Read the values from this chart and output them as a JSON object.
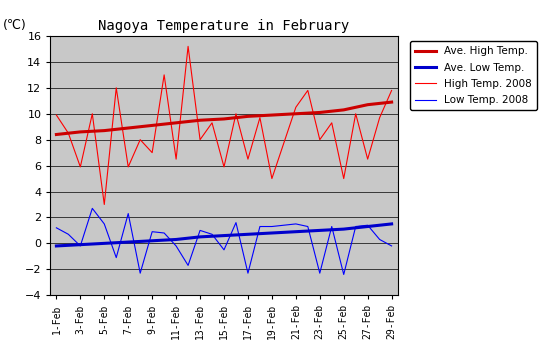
{
  "title": "Nagoya Temperature in February",
  "ylabel": "(℃)",
  "ylim": [
    -4,
    16
  ],
  "yticks": [
    -4,
    -2,
    0,
    2,
    4,
    6,
    8,
    10,
    12,
    14,
    16
  ],
  "x_labels": [
    "1-Feb",
    "3-Feb",
    "5-Feb",
    "7-Feb",
    "9-Feb",
    "11-Feb",
    "13-Feb",
    "15-Feb",
    "17-Feb",
    "19-Feb",
    "21-Feb",
    "23-Feb",
    "25-Feb",
    "27-Feb",
    "29-Feb"
  ],
  "x_days": [
    1,
    3,
    5,
    7,
    9,
    11,
    13,
    15,
    17,
    19,
    21,
    23,
    25,
    27,
    29
  ],
  "ave_high_days": [
    1,
    3,
    5,
    7,
    9,
    11,
    13,
    15,
    17,
    19,
    21,
    23,
    25,
    27,
    29
  ],
  "ave_high": [
    8.4,
    8.6,
    8.7,
    8.9,
    9.1,
    9.3,
    9.5,
    9.6,
    9.8,
    9.9,
    10.0,
    10.1,
    10.3,
    10.7,
    10.9
  ],
  "ave_low_days": [
    1,
    3,
    5,
    7,
    9,
    11,
    13,
    15,
    17,
    19,
    21,
    23,
    25,
    27,
    29
  ],
  "ave_low": [
    -0.2,
    -0.1,
    0.0,
    0.1,
    0.2,
    0.3,
    0.5,
    0.6,
    0.7,
    0.8,
    0.9,
    1.0,
    1.1,
    1.3,
    1.5
  ],
  "high_2008_days": [
    1,
    2,
    3,
    4,
    5,
    6,
    7,
    8,
    9,
    10,
    11,
    12,
    13,
    14,
    15,
    16,
    17,
    18,
    19,
    21,
    22,
    23,
    24,
    25,
    26,
    27,
    28,
    29
  ],
  "high_2008": [
    9.9,
    8.5,
    5.9,
    10.0,
    3.0,
    12.0,
    5.9,
    8.0,
    7.0,
    13.0,
    6.5,
    15.2,
    8.0,
    9.3,
    5.9,
    10.0,
    6.5,
    9.7,
    5.0,
    10.5,
    11.8,
    8.0,
    9.3,
    5.0,
    10.0,
    6.5,
    9.7,
    11.8
  ],
  "low_2008_days": [
    1,
    2,
    3,
    4,
    5,
    6,
    7,
    8,
    9,
    10,
    11,
    12,
    13,
    14,
    15,
    16,
    17,
    18,
    19,
    21,
    22,
    23,
    24,
    25,
    26,
    27,
    28,
    29
  ],
  "low_2008": [
    1.2,
    0.7,
    -0.2,
    2.7,
    1.5,
    -1.1,
    2.3,
    -2.3,
    0.9,
    0.8,
    -0.2,
    -1.7,
    1.0,
    0.7,
    -0.5,
    1.6,
    -2.3,
    1.3,
    1.3,
    1.5,
    1.3,
    -2.3,
    1.3,
    -2.4,
    1.3,
    1.4,
    0.3,
    -0.2
  ],
  "color_ave_high": "#cc0000",
  "color_ave_low": "#0000cc",
  "color_high_2008": "#ff0000",
  "color_low_2008": "#0000ff",
  "bg_color": "#c8c8c8",
  "grid_color": "#000000",
  "figsize": [
    5.6,
    3.6
  ],
  "dpi": 100
}
